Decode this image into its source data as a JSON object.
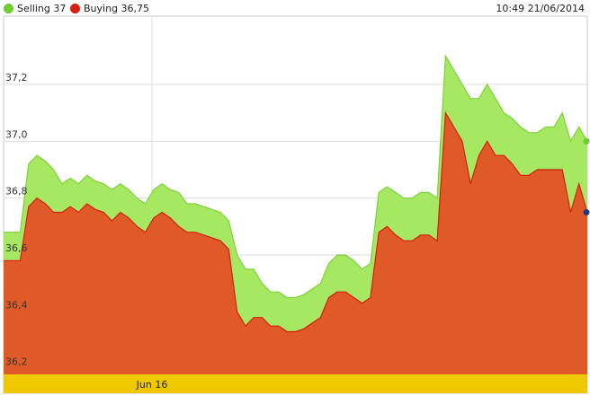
{
  "header": {
    "selling_label": "Selling 37",
    "buying_label": "Buying 36,75",
    "timestamp": "10:49 21/06/2014"
  },
  "colors": {
    "selling": "#a6e862",
    "selling_line": "#7dd13a",
    "buying": "#e05a28",
    "buying_line": "#d41e10",
    "axis_band": "#f0c800",
    "selling_dot": "#6fcd2e",
    "buying_dot": "#1f3a8a"
  },
  "chart_data": {
    "type": "area",
    "title": "",
    "xlabel": "",
    "ylabel": "",
    "ylim": [
      36.18,
      37.44
    ],
    "y_ticks": [
      36.2,
      36.4,
      36.6,
      36.8,
      37.0,
      37.2
    ],
    "y_tick_labels": [
      "36,2",
      "36,4",
      "36,6",
      "36,8",
      "37,0",
      "37,2"
    ],
    "x_tick_labels": [
      "Jun 16"
    ],
    "grid": true,
    "legend": "top-left",
    "series": [
      {
        "name": "Selling",
        "values": [
          36.68,
          36.68,
          36.68,
          36.92,
          36.95,
          36.93,
          36.9,
          36.85,
          36.87,
          36.85,
          36.88,
          36.86,
          36.85,
          36.83,
          36.85,
          36.83,
          36.8,
          36.78,
          36.83,
          36.85,
          36.83,
          36.82,
          36.78,
          36.78,
          36.77,
          36.76,
          36.75,
          36.72,
          36.6,
          36.55,
          36.55,
          36.5,
          36.47,
          36.47,
          36.45,
          36.45,
          36.46,
          36.48,
          36.5,
          36.57,
          36.6,
          36.6,
          36.58,
          36.55,
          36.57,
          36.82,
          36.84,
          36.82,
          36.8,
          36.8,
          36.82,
          36.82,
          36.8,
          37.3,
          37.25,
          37.2,
          37.15,
          37.15,
          37.2,
          37.15,
          37.1,
          37.08,
          37.05,
          37.03,
          37.03,
          37.05,
          37.05,
          37.1,
          37.0,
          37.05,
          37.0
        ]
      },
      {
        "name": "Buying",
        "values": [
          36.58,
          36.58,
          36.58,
          36.77,
          36.8,
          36.78,
          36.75,
          36.75,
          36.77,
          36.75,
          36.78,
          36.76,
          36.75,
          36.72,
          36.75,
          36.73,
          36.7,
          36.68,
          36.73,
          36.75,
          36.73,
          36.7,
          36.68,
          36.68,
          36.67,
          36.66,
          36.65,
          36.62,
          36.4,
          36.35,
          36.38,
          36.38,
          36.35,
          36.35,
          36.33,
          36.33,
          36.34,
          36.36,
          36.38,
          36.45,
          36.47,
          36.47,
          36.45,
          36.43,
          36.45,
          36.68,
          36.7,
          36.67,
          36.65,
          36.65,
          36.67,
          36.67,
          36.65,
          37.1,
          37.05,
          37.0,
          36.85,
          36.95,
          37.0,
          36.95,
          36.95,
          36.92,
          36.88,
          36.88,
          36.9,
          36.9,
          36.9,
          36.9,
          36.75,
          36.85,
          36.75
        ]
      }
    ]
  }
}
